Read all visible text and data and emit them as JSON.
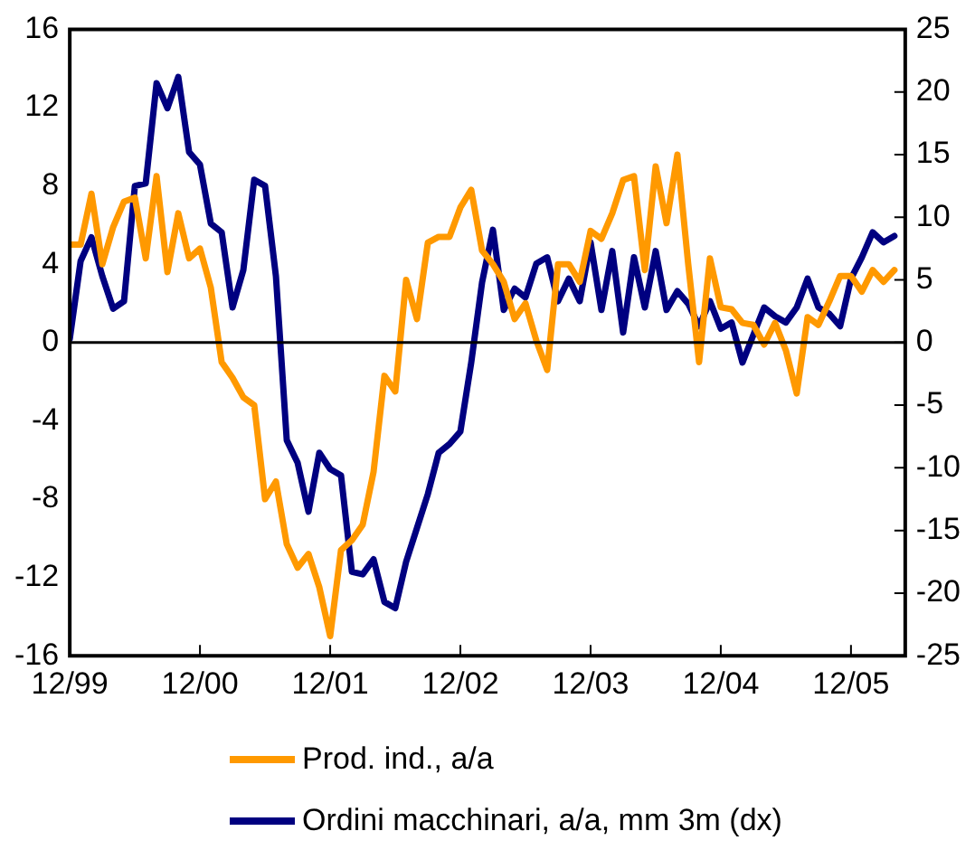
{
  "chart_data": {
    "type": "line",
    "x": [
      "1999-12",
      "2000-01",
      "2000-02",
      "2000-03",
      "2000-04",
      "2000-05",
      "2000-06",
      "2000-07",
      "2000-08",
      "2000-09",
      "2000-10",
      "2000-11",
      "2000-12",
      "2001-01",
      "2001-02",
      "2001-03",
      "2001-04",
      "2001-05",
      "2001-06",
      "2001-07",
      "2001-08",
      "2001-09",
      "2001-10",
      "2001-11",
      "2001-12",
      "2002-01",
      "2002-02",
      "2002-03",
      "2002-04",
      "2002-05",
      "2002-06",
      "2002-07",
      "2002-08",
      "2002-09",
      "2002-10",
      "2002-11",
      "2002-12",
      "2003-01",
      "2003-02",
      "2003-03",
      "2003-04",
      "2003-05",
      "2003-06",
      "2003-07",
      "2003-08",
      "2003-09",
      "2003-10",
      "2003-11",
      "2003-12",
      "2004-01",
      "2004-02",
      "2004-03",
      "2004-04",
      "2004-05",
      "2004-06",
      "2004-07",
      "2004-08",
      "2004-09",
      "2004-10",
      "2004-11",
      "2004-12",
      "2005-01",
      "2005-02",
      "2005-03",
      "2005-04",
      "2005-05",
      "2005-06",
      "2005-07",
      "2005-08",
      "2005-09",
      "2005-10",
      "2005-11",
      "2005-12",
      "2006-01",
      "2006-02",
      "2006-03",
      "2006-04"
    ],
    "series": [
      {
        "name": "Prod. ind., a/a",
        "color": "#ff9900",
        "values": [
          5.0,
          5.0,
          7.6,
          4.0,
          5.9,
          7.2,
          7.4,
          4.3,
          8.5,
          3.6,
          6.6,
          4.3,
          4.8,
          2.8,
          -1.0,
          -1.8,
          -2.8,
          -3.2,
          -8.0,
          -7.1,
          -10.3,
          -11.5,
          -10.8,
          -12.5,
          -15.0,
          -10.6,
          -10.1,
          -9.3,
          -6.6,
          -1.7,
          -2.5,
          3.2,
          1.2,
          5.1,
          5.4,
          5.4,
          6.9,
          7.8,
          4.7,
          4.0,
          3.1,
          1.2,
          2.0,
          0.1,
          -1.4,
          4.0,
          4.0,
          3.1,
          5.7,
          5.3,
          6.6,
          8.3,
          8.5,
          3.7,
          9.0,
          6.1,
          9.6,
          4.0,
          -1.0,
          4.3,
          1.8,
          1.7,
          1.0,
          0.9,
          -0.1,
          1.0,
          -0.4,
          -2.6,
          1.3,
          0.9,
          2.1,
          3.4,
          3.4,
          2.6,
          3.7,
          3.1,
          3.7
        ]
      },
      {
        "name": "Ordini macchinari, a/a, mm 3m (dx)",
        "color": "#000080",
        "axis": "y2",
        "values": [
          0.3,
          6.5,
          8.4,
          5.3,
          2.7,
          3.3,
          12.5,
          12.7,
          20.7,
          18.7,
          21.2,
          15.2,
          14.2,
          9.5,
          8.8,
          2.8,
          5.8,
          13.0,
          12.5,
          5.3,
          -7.8,
          -9.6,
          -13.5,
          -8.8,
          -10.1,
          -10.6,
          -18.3,
          -18.5,
          -17.3,
          -20.7,
          -21.2,
          -17.5,
          -14.8,
          -12.1,
          -8.8,
          -8.1,
          -7.1,
          -1.6,
          4.8,
          9.0,
          2.6,
          4.3,
          3.6,
          6.3,
          6.8,
          3.3,
          5.1,
          3.3,
          8.0,
          2.6,
          7.3,
          0.8,
          6.8,
          2.8,
          7.3,
          2.6,
          4.1,
          3.1,
          1.3,
          3.3,
          1.1,
          1.6,
          -1.6,
          0.6,
          2.8,
          2.1,
          1.6,
          2.8,
          5.1,
          2.8,
          2.3,
          1.3,
          5.1,
          6.8,
          8.8,
          8.0,
          8.5
        ]
      }
    ],
    "xlim": [
      "1999-12",
      "2006-05"
    ],
    "xticks": [
      {
        "value": "1999-12",
        "label": "12/99"
      },
      {
        "value": "2000-12",
        "label": "12/00"
      },
      {
        "value": "2001-12",
        "label": "12/01"
      },
      {
        "value": "2002-12",
        "label": "12/02"
      },
      {
        "value": "2003-12",
        "label": "12/03"
      },
      {
        "value": "2004-12",
        "label": "12/04"
      },
      {
        "value": "2005-12",
        "label": "12/05"
      }
    ],
    "ylim": [
      -16,
      16
    ],
    "yticks": [
      -16,
      -12,
      -8,
      -4,
      0,
      4,
      8,
      12,
      16
    ],
    "y2lim": [
      -25,
      25
    ],
    "y2ticks": [
      -25,
      -20,
      -15,
      -10,
      -5,
      0,
      5,
      10,
      15,
      20,
      25
    ],
    "ref_lines": [
      {
        "axis": "y",
        "value": 0,
        "color": "#000000"
      }
    ],
    "legend": "bottom",
    "grid": false,
    "marker": "none",
    "line_style": "solid"
  }
}
